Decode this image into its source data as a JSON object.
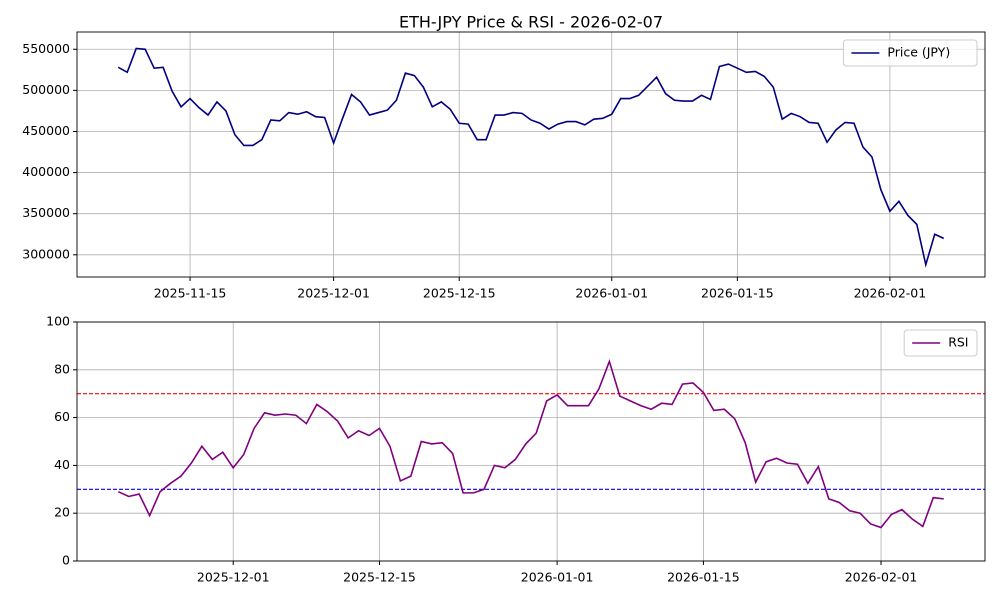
{
  "chart_data": [
    {
      "type": "line",
      "title": "ETH-JPY Price & RSI - 2026-02-07",
      "x": [
        "2025-11-07",
        "2025-11-08",
        "2025-11-09",
        "2025-11-10",
        "2025-11-11",
        "2025-11-12",
        "2025-11-13",
        "2025-11-14",
        "2025-11-15",
        "2025-11-16",
        "2025-11-17",
        "2025-11-18",
        "2025-11-19",
        "2025-11-20",
        "2025-11-21",
        "2025-11-22",
        "2025-11-23",
        "2025-11-24",
        "2025-11-25",
        "2025-11-26",
        "2025-11-27",
        "2025-11-28",
        "2025-11-29",
        "2025-11-30",
        "2025-12-01",
        "2025-12-02",
        "2025-12-03",
        "2025-12-04",
        "2025-12-05",
        "2025-12-06",
        "2025-12-07",
        "2025-12-08",
        "2025-12-09",
        "2025-12-10",
        "2025-12-11",
        "2025-12-12",
        "2025-12-13",
        "2025-12-14",
        "2025-12-15",
        "2025-12-16",
        "2025-12-17",
        "2025-12-18",
        "2025-12-19",
        "2025-12-20",
        "2025-12-21",
        "2025-12-22",
        "2025-12-23",
        "2025-12-24",
        "2025-12-25",
        "2025-12-26",
        "2025-12-27",
        "2025-12-28",
        "2025-12-29",
        "2025-12-30",
        "2025-12-31",
        "2026-01-01",
        "2026-01-02",
        "2026-01-03",
        "2026-01-04",
        "2026-01-05",
        "2026-01-06",
        "2026-01-07",
        "2026-01-08",
        "2026-01-09",
        "2026-01-10",
        "2026-01-11",
        "2026-01-12",
        "2026-01-13",
        "2026-01-14",
        "2026-01-15",
        "2026-01-16",
        "2026-01-17",
        "2026-01-18",
        "2026-01-19",
        "2026-01-20",
        "2026-01-21",
        "2026-01-22",
        "2026-01-23",
        "2026-01-24",
        "2026-01-25",
        "2026-01-26",
        "2026-01-27",
        "2026-01-28",
        "2026-01-29",
        "2026-01-30",
        "2026-01-31",
        "2026-02-01",
        "2026-02-02",
        "2026-02-03",
        "2026-02-04",
        "2026-02-05",
        "2026-02-06",
        "2026-02-07"
      ],
      "series": [
        {
          "name": "Price (JPY)",
          "color": "#000080",
          "values": [
            528000,
            522000,
            551000,
            550000,
            527000,
            528000,
            499000,
            480000,
            490000,
            479000,
            470000,
            486000,
            475000,
            446000,
            433000,
            433000,
            440000,
            464000,
            463000,
            473000,
            471000,
            474000,
            468000,
            467000,
            436000,
            466000,
            495000,
            486000,
            470000,
            473000,
            476000,
            488000,
            521000,
            518000,
            504000,
            480000,
            486000,
            477000,
            460000,
            459000,
            440000,
            440000,
            470000,
            470000,
            473000,
            472000,
            464000,
            460000,
            453000,
            459000,
            462000,
            462000,
            458000,
            465000,
            466000,
            471000,
            490000,
            490000,
            494000,
            505000,
            516000,
            496000,
            488000,
            487000,
            487000,
            494000,
            489000,
            529000,
            532000,
            527000,
            522000,
            523000,
            517000,
            504000,
            465000,
            472000,
            468000,
            461000,
            460000,
            437000,
            452000,
            461000,
            460000,
            431000,
            419000,
            379000,
            353000,
            365000,
            348000,
            337000,
            288000,
            325000,
            320000
          ]
        }
      ],
      "xlim": [
        "2025-11-02T09:36",
        "2026-02-11T14:24"
      ],
      "xticks": [
        "2025-11-15",
        "2025-12-01",
        "2025-12-15",
        "2026-01-01",
        "2026-01-15",
        "2026-02-01"
      ],
      "ylim": [
        273000,
        571000
      ],
      "yticks": [
        300000,
        350000,
        400000,
        450000,
        500000,
        550000
      ],
      "grid": true,
      "legend": "upper right"
    },
    {
      "type": "line",
      "x": [
        "2025-11-20",
        "2025-11-21",
        "2025-11-22",
        "2025-11-23",
        "2025-11-24",
        "2025-11-25",
        "2025-11-26",
        "2025-11-27",
        "2025-11-28",
        "2025-11-29",
        "2025-11-30",
        "2025-12-01",
        "2025-12-02",
        "2025-12-03",
        "2025-12-04",
        "2025-12-05",
        "2025-12-06",
        "2025-12-07",
        "2025-12-08",
        "2025-12-09",
        "2025-12-10",
        "2025-12-11",
        "2025-12-12",
        "2025-12-13",
        "2025-12-14",
        "2025-12-15",
        "2025-12-16",
        "2025-12-17",
        "2025-12-18",
        "2025-12-19",
        "2025-12-20",
        "2025-12-21",
        "2025-12-22",
        "2025-12-23",
        "2025-12-24",
        "2025-12-25",
        "2025-12-26",
        "2025-12-27",
        "2025-12-28",
        "2025-12-29",
        "2025-12-30",
        "2025-12-31",
        "2026-01-01",
        "2026-01-02",
        "2026-01-03",
        "2026-01-04",
        "2026-01-05",
        "2026-01-06",
        "2026-01-07",
        "2026-01-08",
        "2026-01-09",
        "2026-01-10",
        "2026-01-11",
        "2026-01-12",
        "2026-01-13",
        "2026-01-14",
        "2026-01-15",
        "2026-01-16",
        "2026-01-17",
        "2026-01-18",
        "2026-01-19",
        "2026-01-20",
        "2026-01-21",
        "2026-01-22",
        "2026-01-23",
        "2026-01-24",
        "2026-01-25",
        "2026-01-26",
        "2026-01-27",
        "2026-01-28",
        "2026-01-29",
        "2026-01-30",
        "2026-01-31",
        "2026-02-01",
        "2026-02-02",
        "2026-02-03",
        "2026-02-04",
        "2026-02-05",
        "2026-02-06",
        "2026-02-07"
      ],
      "series": [
        {
          "name": "RSI",
          "color": "#800080",
          "values": [
            29,
            27,
            28,
            19,
            29,
            32.5,
            35.5,
            41,
            48,
            42.5,
            45.5,
            39,
            44.5,
            55.5,
            62,
            61,
            61.5,
            61,
            57.5,
            65.5,
            62.5,
            58.5,
            51.5,
            54.5,
            52.5,
            55.5,
            48,
            33.5,
            35.5,
            50,
            49,
            49.5,
            45,
            28.5,
            28.5,
            30,
            40,
            39,
            42.5,
            49,
            53.5,
            67,
            69.5,
            65,
            65,
            65,
            72,
            83.5,
            69,
            67,
            65,
            63.5,
            66,
            65.5,
            74,
            74.5,
            70.5,
            63,
            63.5,
            59.5,
            49.5,
            33,
            41.5,
            43,
            41,
            40.5,
            32.5,
            39.5,
            26,
            24.5,
            21,
            20,
            15.5,
            14,
            19.5,
            21.5,
            17.5,
            14.5,
            26.5,
            26
          ]
        }
      ],
      "hlines": [
        {
          "value": 70,
          "color": "#ff0000"
        },
        {
          "value": 30,
          "color": "#0000ff"
        }
      ],
      "xlim": [
        "2025-11-16T01:12",
        "2026-02-10T22:48"
      ],
      "xticks": [
        "2025-12-01",
        "2025-12-15",
        "2026-01-01",
        "2026-01-15",
        "2026-02-01"
      ],
      "ylim": [
        0,
        100
      ],
      "yticks": [
        0,
        20,
        40,
        60,
        80,
        100
      ],
      "grid": true,
      "legend": "upper right"
    }
  ]
}
